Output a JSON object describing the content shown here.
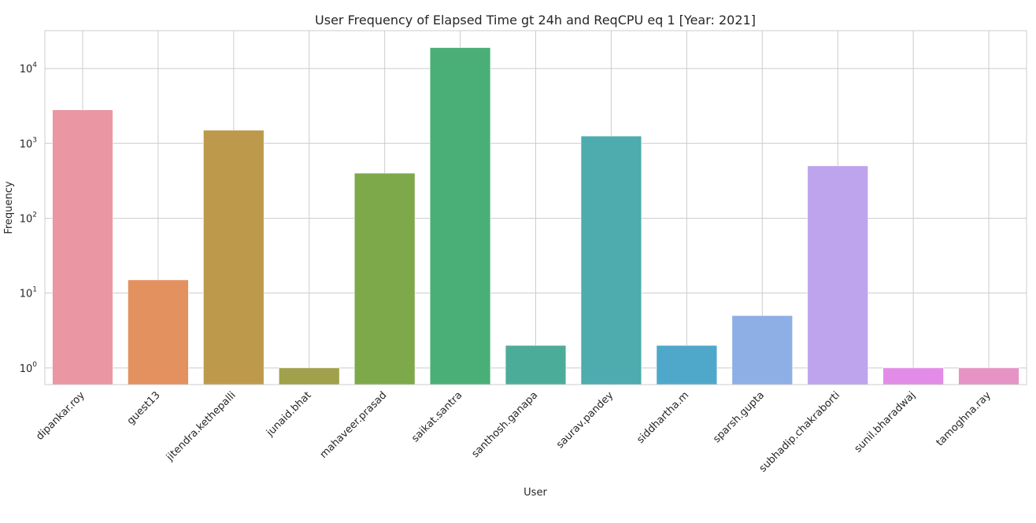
{
  "chart_data": {
    "type": "bar",
    "title": "User Frequency of Elapsed Time gt 24h and ReqCPU eq 1 [Year: 2021]",
    "xlabel": "User",
    "ylabel": "Frequency",
    "yscale": "log",
    "ylim": [
      0.6,
      32000
    ],
    "yticks": [
      {
        "base": "10",
        "exp": "0",
        "value": 1
      },
      {
        "base": "10",
        "exp": "1",
        "value": 10
      },
      {
        "base": "10",
        "exp": "2",
        "value": 100
      },
      {
        "base": "10",
        "exp": "3",
        "value": 1000
      },
      {
        "base": "10",
        "exp": "4",
        "value": 10000
      }
    ],
    "grid": true,
    "categories": [
      "dipankar.roy",
      "guest13",
      "jitendra.kethepalli",
      "junaid.bhat",
      "mahaveer.prasad",
      "saikat.santra",
      "santhosh.ganapa",
      "saurav.pandey",
      "siddhartha.m",
      "sparsh.gupta",
      "subhadip.chakraborti",
      "sunil.bharadwaj",
      "tamoghna.ray"
    ],
    "values": [
      2800,
      15,
      1500,
      1,
      400,
      19000,
      2,
      1250,
      2,
      5,
      500,
      1,
      1
    ],
    "colors": [
      "#ea96a3",
      "#e3915f",
      "#bd9a4b",
      "#a0a14a",
      "#7da94a",
      "#4aaf77",
      "#4bad99",
      "#4eabae",
      "#4fa8c9",
      "#8eaee6",
      "#bda4ec",
      "#e38ce7",
      "#e693c6"
    ]
  }
}
